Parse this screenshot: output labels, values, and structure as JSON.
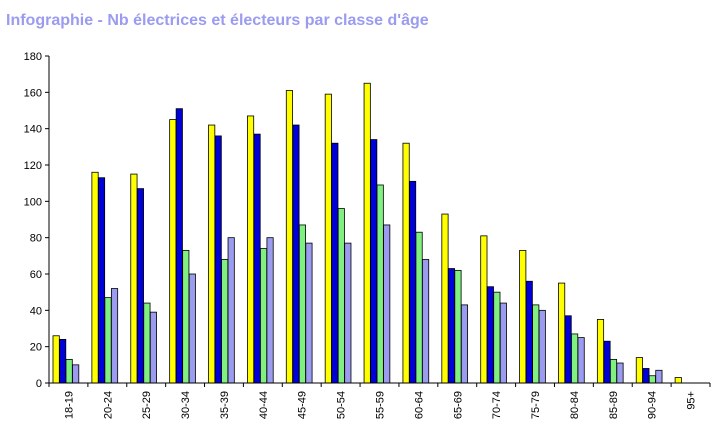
{
  "title": "Infographie - Nb électrices et électeurs par classe d'âge",
  "colors": {
    "title": "#9b9bf0",
    "series": [
      "#ffff00",
      "#0000d8",
      "#80f080",
      "#9b9bf0"
    ],
    "bar_outline": "#000000"
  },
  "chart_data": {
    "type": "bar",
    "categories": [
      "18-19",
      "20-24",
      "25-29",
      "30-34",
      "35-39",
      "40-44",
      "45-49",
      "50-54",
      "55-59",
      "60-64",
      "65-69",
      "70-74",
      "75-79",
      "80-84",
      "85-89",
      "90-94",
      "95+"
    ],
    "series": [
      {
        "values": [
          26,
          116,
          115,
          145,
          142,
          147,
          161,
          159,
          165,
          132,
          93,
          81,
          73,
          55,
          35,
          14,
          3
        ]
      },
      {
        "values": [
          24,
          113,
          107,
          151,
          136,
          137,
          142,
          132,
          134,
          111,
          63,
          53,
          56,
          37,
          23,
          8,
          0
        ]
      },
      {
        "values": [
          13,
          47,
          44,
          73,
          68,
          74,
          87,
          96,
          109,
          83,
          62,
          50,
          43,
          27,
          13,
          4,
          0
        ]
      },
      {
        "values": [
          10,
          52,
          39,
          60,
          80,
          80,
          77,
          77,
          87,
          68,
          43,
          44,
          40,
          25,
          11,
          7,
          0
        ]
      }
    ],
    "ylim": [
      0,
      180
    ],
    "yticks": [
      "0",
      "20",
      "40",
      "60",
      "80",
      "100",
      "120",
      "140",
      "160",
      "180"
    ],
    "grid": false,
    "xlabel": "",
    "ylabel": ""
  }
}
